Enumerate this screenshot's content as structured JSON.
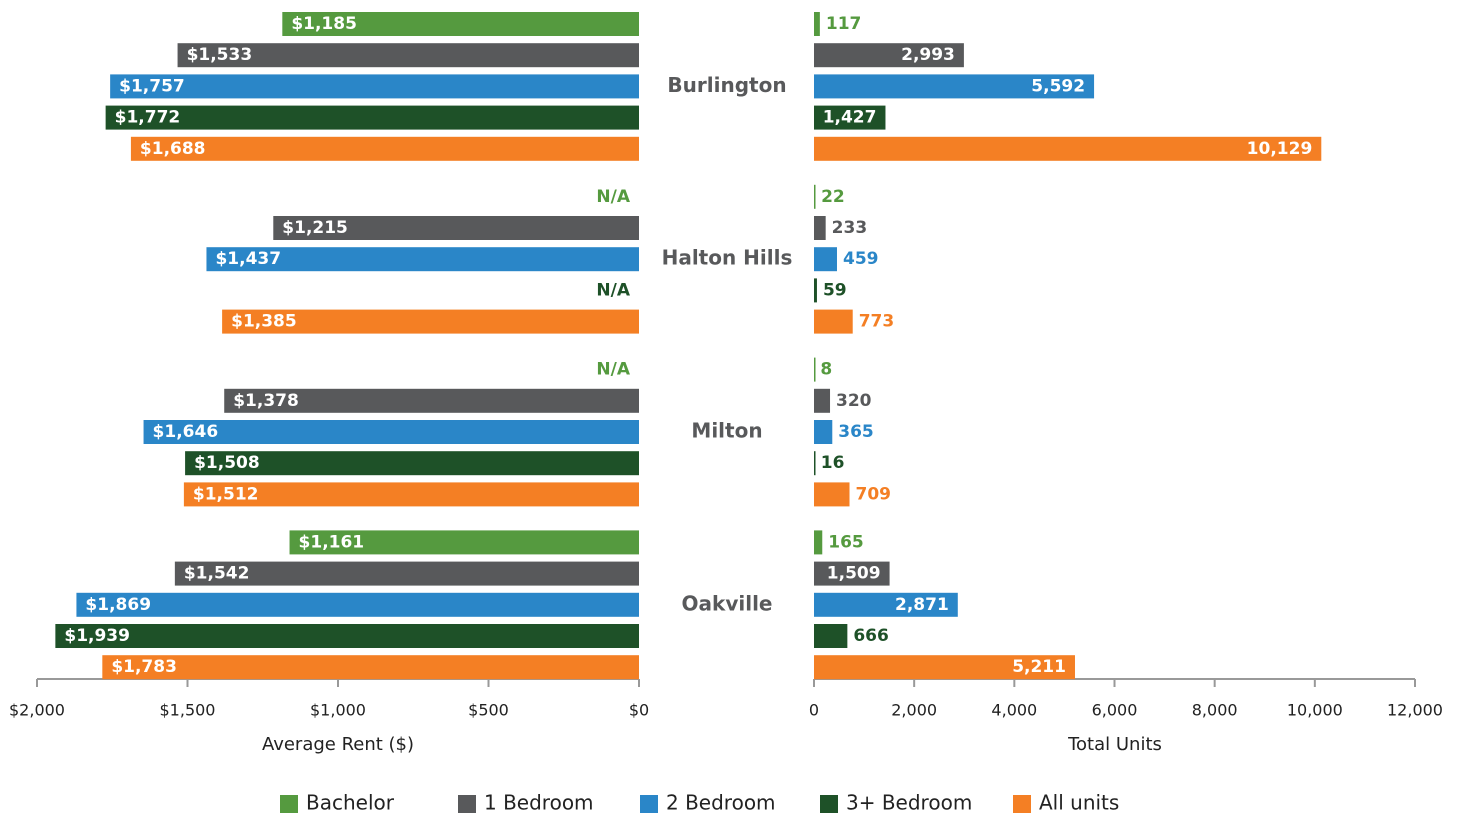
{
  "chart_data": [
    {
      "type": "bar",
      "orientation": "horizontal",
      "xlabel": "Average Rent ($)",
      "categories": [
        "Burlington",
        "Halton Hills",
        "Milton",
        "Oakville"
      ],
      "xlim": [
        2000,
        0
      ],
      "xticks": [
        {
          "value": 2000,
          "label": "$2,000"
        },
        {
          "value": 1500,
          "label": "$1,500"
        },
        {
          "value": 1000,
          "label": "$1,000"
        },
        {
          "value": 500,
          "label": "$500"
        },
        {
          "value": 0,
          "label": "$0"
        }
      ],
      "series": [
        {
          "name": "Bachelor",
          "color": "#559a3f",
          "values": [
            1185,
            null,
            null,
            1161
          ],
          "value_labels": [
            "$1,185",
            "N/A",
            "N/A",
            "$1,161"
          ]
        },
        {
          "name": "1 Bedroom",
          "color": "#58595b",
          "values": [
            1533,
            1215,
            1378,
            1542
          ],
          "value_labels": [
            "$1,533",
            "$1,215",
            "$1,378",
            "$1,542"
          ]
        },
        {
          "name": "2 Bedroom",
          "color": "#2a86c8",
          "values": [
            1757,
            1437,
            1646,
            1869
          ],
          "value_labels": [
            "$1,757",
            "$1,437",
            "$1,646",
            "$1,869"
          ]
        },
        {
          "name": "3+ Bedroom",
          "color": "#1e5128",
          "values": [
            1772,
            null,
            1508,
            1939
          ],
          "value_labels": [
            "$1,772",
            "N/A",
            "$1,508",
            "$1,939"
          ]
        },
        {
          "name": "All units",
          "color": "#f47f24",
          "values": [
            1688,
            1385,
            1512,
            1783
          ],
          "value_labels": [
            "$1,688",
            "$1,385",
            "$1,512",
            "$1,783"
          ]
        }
      ]
    },
    {
      "type": "bar",
      "orientation": "horizontal",
      "xlabel": "Total Units",
      "xlim": [
        0,
        12000
      ],
      "xticks": [
        0,
        {
          "value": 2000,
          "label": "2,000"
        },
        {
          "value": 4000,
          "label": "4,000"
        },
        {
          "value": 6000,
          "label": "6,000"
        },
        {
          "value": 8000,
          "label": "8,000"
        },
        {
          "value": 10000,
          "label": "10,000"
        },
        {
          "value": 12000,
          "label": "12,000"
        }
      ],
      "series": [
        {
          "values": [
            117,
            22,
            8,
            165
          ],
          "value_labels": [
            "117",
            "22",
            "8",
            "165"
          ]
        },
        {
          "values": [
            2993,
            233,
            320,
            1509
          ],
          "value_labels": [
            "2,993",
            "233",
            "320",
            "1,509"
          ]
        },
        {
          "values": [
            5592,
            459,
            365,
            2871
          ],
          "value_labels": [
            "5,592",
            "459",
            "365",
            "2,871"
          ]
        },
        {
          "values": [
            1427,
            59,
            16,
            666
          ],
          "value_labels": [
            "1,427",
            "59",
            "16",
            "666"
          ]
        },
        {
          "values": [
            10129,
            773,
            709,
            5211
          ],
          "value_labels": [
            "10,129",
            "773",
            "709",
            "5,211"
          ]
        }
      ]
    }
  ]
}
